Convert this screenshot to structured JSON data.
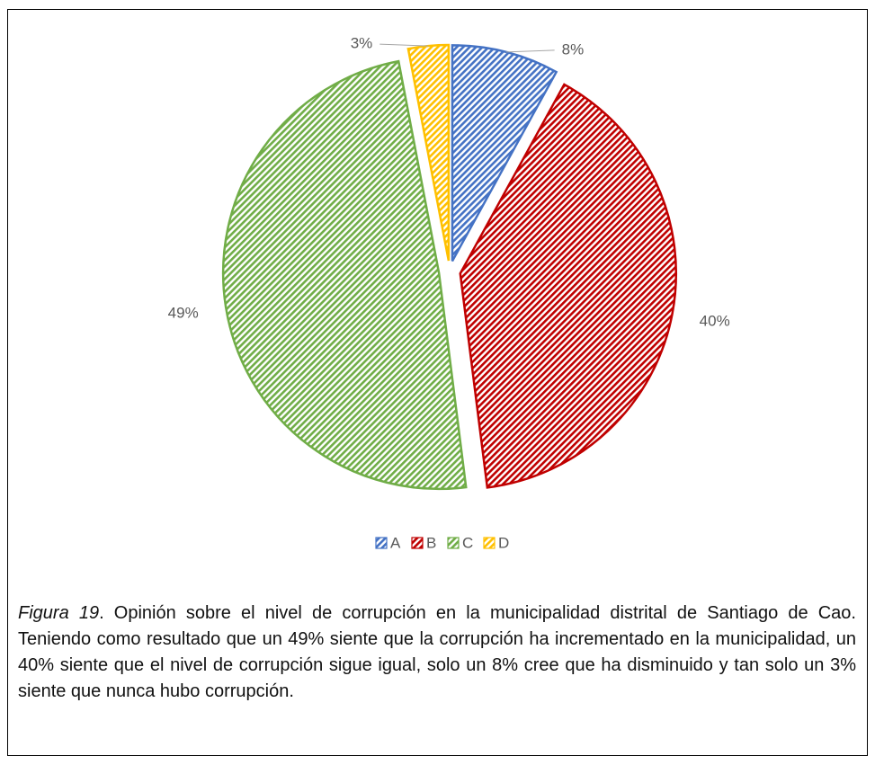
{
  "chart_data": {
    "type": "pie",
    "categories": [
      "A",
      "B",
      "C",
      "D"
    ],
    "values": [
      8,
      40,
      49,
      3
    ],
    "value_labels": [
      "8%",
      "40%",
      "49%",
      "3%"
    ],
    "colors": [
      "#4472c4",
      "#c00000",
      "#70ad47",
      "#ffc000"
    ],
    "legend": "bottom"
  },
  "caption": {
    "label": "Figura 19",
    "text": ". Opinión sobre el nivel de corrupción en la municipalidad distrital de Santiago de Cao. Teniendo como resultado que un 49% siente que la corrupción ha incrementado en la municipalidad, un 40% siente que el nivel de corrupción sigue igual, solo un 8% cree que ha disminuido y tan solo un 3% siente que nunca hubo corrupción."
  }
}
